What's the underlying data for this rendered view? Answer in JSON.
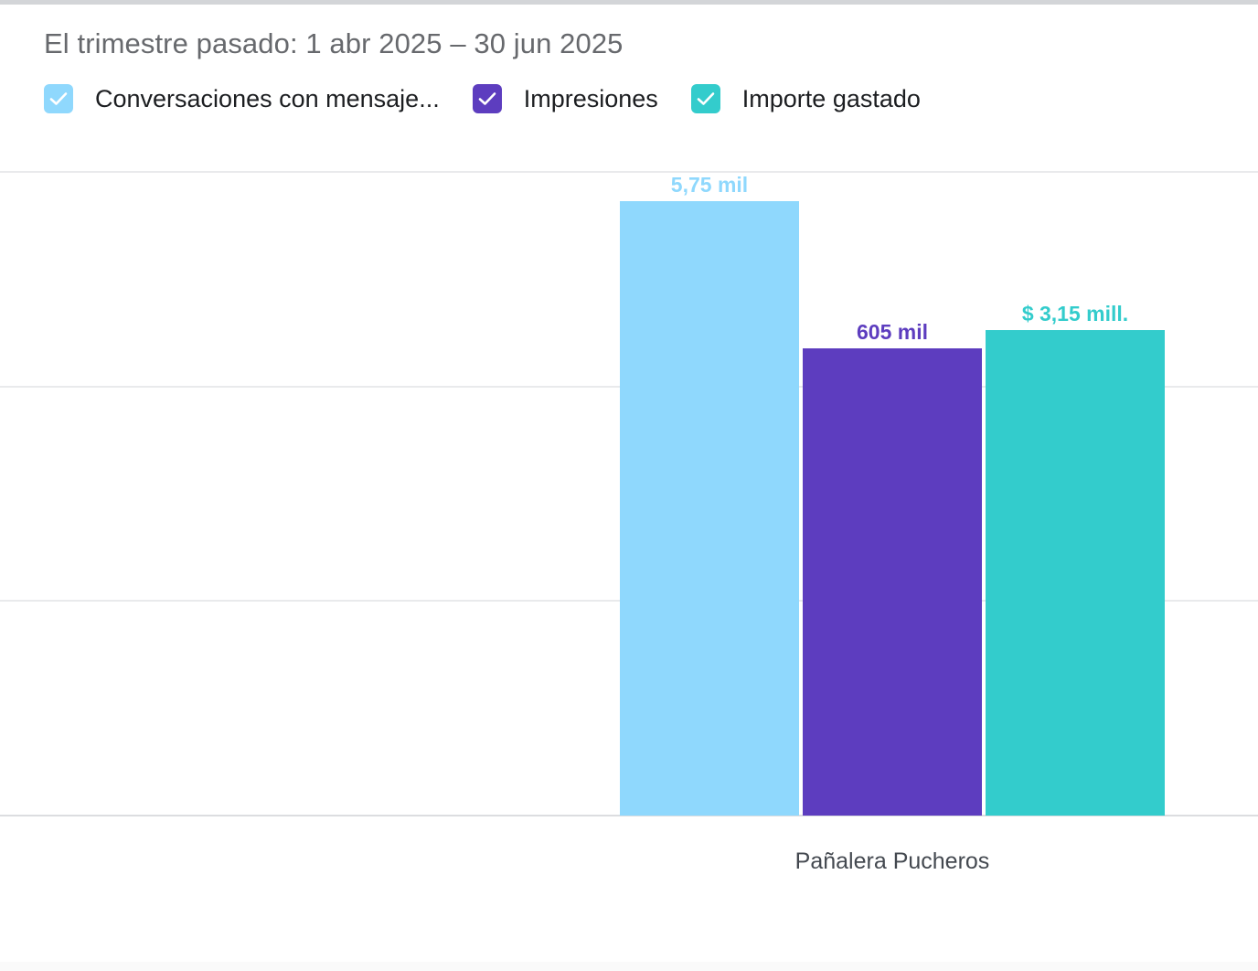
{
  "header": {
    "period_label": "El trimestre pasado: 1 abr 2025 – 30 jun 2025"
  },
  "legend": [
    {
      "label": "Conversaciones con mensaje...",
      "checked": true,
      "color": "#8fd8fd",
      "icon": "checkmark-icon"
    },
    {
      "label": "Impresiones",
      "checked": true,
      "color": "#5d3dbf",
      "icon": "checkmark-icon"
    },
    {
      "label": "Importe gastado",
      "checked": true,
      "color": "#33cccc",
      "icon": "checkmark-icon"
    }
  ],
  "chart_data": {
    "type": "bar",
    "categories": [
      "Pañalera Pucheros"
    ],
    "series": [
      {
        "name": "Conversaciones con mensaje...",
        "values": [
          5750
        ],
        "data_label": "5,75 mil",
        "color": "#8fd8fd",
        "relative_height": 1.0
      },
      {
        "name": "Impresiones",
        "values": [
          605000
        ],
        "data_label": "605 mil",
        "color": "#5d3dbf",
        "relative_height": 0.76
      },
      {
        "name": "Importe gastado",
        "values": [
          3150000
        ],
        "data_label": "$ 3,15 mill.",
        "color": "#33cccc",
        "relative_height": 0.79
      }
    ],
    "grid": true,
    "legend_position": "top-left",
    "per_series_scale": true
  }
}
